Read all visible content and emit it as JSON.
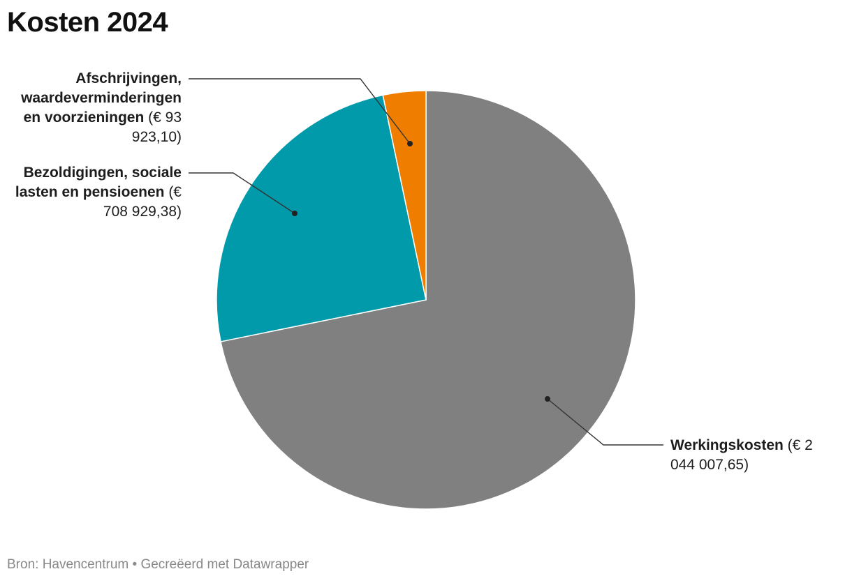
{
  "title": "Kosten 2024",
  "footer": "Bron: Havencentrum • Gecreëerd met Datawrapper",
  "colors": {
    "werkingskosten": "#808080",
    "bezoldigingen": "#019aab",
    "afschrijvingen": "#ef7d00"
  },
  "chart_data": {
    "type": "pie",
    "title": "Kosten 2024",
    "currency": "€",
    "slices": [
      {
        "key": "werkingskosten",
        "name": "Werkingskosten",
        "value": 2044007.65,
        "value_label": "€ 2 044 007,65",
        "label_name": "Werkingskosten",
        "label_rest": " (€ 2 044 007,65)",
        "color": "#808080"
      },
      {
        "key": "bezoldigingen",
        "name": "Bezoldigingen, sociale lasten en pensioenen",
        "value": 708929.38,
        "value_label": "€ 708 929,38",
        "label_name": "Bezoldigingen, sociale lasten en pensioenen",
        "label_rest": " (€ 708 929,38)",
        "color": "#019aab"
      },
      {
        "key": "afschrijvingen",
        "name": "Afschrijvingen, waardeverminderingen en voorzieningen",
        "value": 93923.1,
        "value_label": "€ 93 923,10",
        "label_name": "Afschrijvingen, waardeverminderingen en voorzieningen",
        "label_rest": " (€ 93 923,10)",
        "color": "#ef7d00"
      }
    ]
  }
}
